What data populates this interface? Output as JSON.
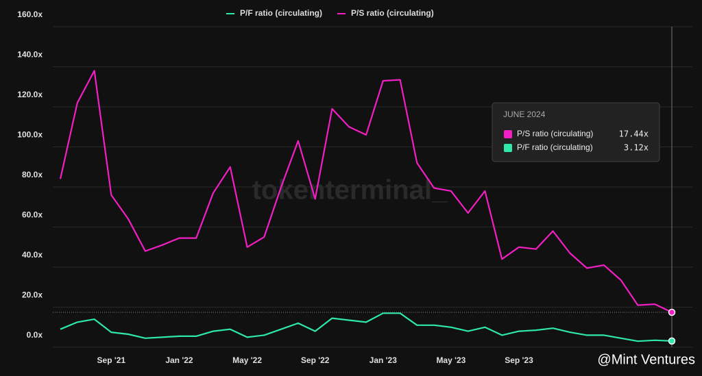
{
  "chart_data": {
    "type": "line",
    "categories": [
      null,
      null,
      null,
      "Sep '21",
      null,
      null,
      null,
      "Jan '22",
      null,
      null,
      null,
      "May '22",
      null,
      null,
      null,
      "Sep '22",
      null,
      null,
      null,
      "Jan '23",
      null,
      null,
      null,
      "May '23",
      null,
      null,
      null,
      "Sep '23",
      null,
      null,
      null,
      null,
      null,
      null,
      null,
      null,
      null
    ],
    "series": [
      {
        "name": "P/F ratio (circulating)",
        "color": "#2ee8a8",
        "values": [
          9,
          12.5,
          14,
          7.5,
          6.5,
          4.5,
          5,
          5.5,
          5.5,
          8,
          9,
          5,
          6,
          9,
          12,
          8,
          14.5,
          13.5,
          12.5,
          17,
          17,
          11,
          11,
          10,
          8,
          10,
          6,
          8,
          8.5,
          9.5,
          7.5,
          6,
          6,
          4.5,
          3,
          3.5,
          3.12
        ]
      },
      {
        "name": "P/S ratio (circulating)",
        "color": "#f21fc4",
        "values": [
          84,
          122,
          138,
          76,
          64,
          48,
          51,
          54.5,
          54.5,
          77,
          90,
          50,
          55,
          80,
          103,
          74,
          119,
          110,
          106,
          133,
          133.5,
          92,
          79.5,
          78,
          67,
          78,
          44,
          50,
          49,
          58,
          47,
          39.5,
          41,
          33.5,
          21,
          21.5,
          17.44
        ]
      }
    ],
    "ylim": [
      0,
      160
    ],
    "yticks": [
      {
        "value": 0,
        "label": "0.0x"
      },
      {
        "value": 20,
        "label": "20.0x"
      },
      {
        "value": 40,
        "label": "40.0x"
      },
      {
        "value": 60,
        "label": "60.0x"
      },
      {
        "value": 80,
        "label": "80.0x"
      },
      {
        "value": 100,
        "label": "100.0x"
      },
      {
        "value": 120,
        "label": "120.0x"
      },
      {
        "value": 140,
        "label": "140.0x"
      },
      {
        "value": 160,
        "label": "160.0x"
      }
    ],
    "grid": true,
    "tooltip": {
      "title": "JUNE 2024",
      "items": [
        {
          "value": 17.44,
          "label": "17.44x"
        },
        {
          "value": 3.12,
          "label": "3.12x"
        }
      ]
    },
    "watermark": "tokenterminal_",
    "credit": "@Mint Ventures"
  }
}
